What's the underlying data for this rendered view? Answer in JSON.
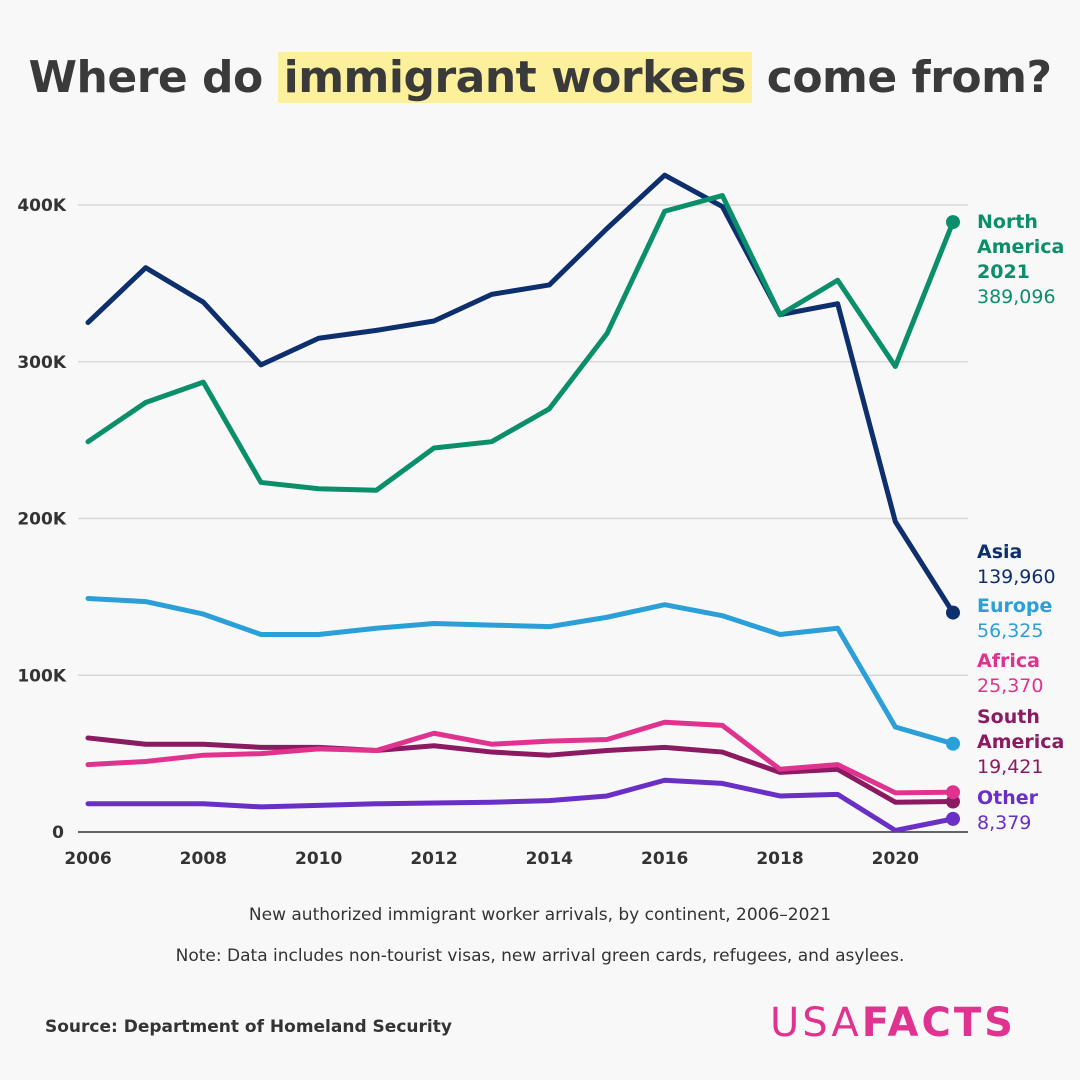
{
  "title": {
    "pre": "Where do ",
    "highlight": "immigrant workers",
    "post": " come from?"
  },
  "chart_data": {
    "type": "line",
    "title": "Where do immigrant workers come from?",
    "subtitle": "New authorized immigrant worker arrivals, by continent, 2006–2021",
    "note": "Note: Data includes non-tourist visas, new arrival green cards, refugees, and asylees.",
    "x": [
      2006,
      2007,
      2008,
      2009,
      2010,
      2011,
      2012,
      2013,
      2014,
      2015,
      2016,
      2017,
      2018,
      2019,
      2020,
      2021
    ],
    "xticks": [
      "2006",
      "2008",
      "2010",
      "2012",
      "2014",
      "2016",
      "2018",
      "2020"
    ],
    "yticks": [
      "0",
      "100K",
      "200K",
      "300K",
      "400K"
    ],
    "ylim": [
      0,
      440000
    ],
    "grid": true,
    "legend": "right-end labels",
    "series": [
      {
        "name": "North America",
        "color": "#0a8f6a",
        "values": [
          249000,
          274000,
          287000,
          223000,
          219000,
          218000,
          245000,
          249000,
          270000,
          318000,
          396000,
          406000,
          330000,
          352000,
          297000,
          389096
        ],
        "label_lines": [
          "North",
          "America",
          "2021"
        ],
        "end_value": "389,096"
      },
      {
        "name": "Asia",
        "color": "#0d2f6e",
        "values": [
          325000,
          360000,
          338000,
          298000,
          315000,
          320000,
          326000,
          343000,
          349000,
          385000,
          419000,
          399000,
          330000,
          337000,
          198000,
          139960
        ],
        "label_lines": [
          "Asia"
        ],
        "end_value": "139,960"
      },
      {
        "name": "Europe",
        "color": "#2a9fd8",
        "values": [
          149000,
          147000,
          139000,
          126000,
          126000,
          130000,
          133000,
          132000,
          131000,
          137000,
          145000,
          138000,
          126000,
          130000,
          67000,
          56325
        ],
        "label_lines": [
          "Europe"
        ],
        "end_value": "56,325"
      },
      {
        "name": "Africa",
        "color": "#e0338f",
        "values": [
          43000,
          45000,
          49000,
          50000,
          53000,
          52000,
          63000,
          56000,
          58000,
          59000,
          70000,
          68000,
          40000,
          43000,
          25000,
          25370
        ],
        "label_lines": [
          "Africa"
        ],
        "end_value": "25,370"
      },
      {
        "name": "South America",
        "color": "#8b1a62",
        "values": [
          60000,
          56000,
          56000,
          54000,
          54000,
          52000,
          55000,
          51000,
          49000,
          52000,
          54000,
          51000,
          38000,
          40000,
          19000,
          19421
        ],
        "label_lines": [
          "South",
          "America"
        ],
        "end_value": "19,421"
      },
      {
        "name": "Other",
        "color": "#6a2fc5",
        "values": [
          18000,
          18000,
          18000,
          16000,
          17000,
          18000,
          18500,
          19000,
          20000,
          23000,
          33000,
          31000,
          23000,
          24000,
          1000,
          8379
        ],
        "label_lines": [
          "Other"
        ],
        "end_value": "8,379"
      }
    ]
  },
  "source": "Source: Department of Homeland Security",
  "logo": {
    "a": "USA",
    "b": "FACTS"
  }
}
